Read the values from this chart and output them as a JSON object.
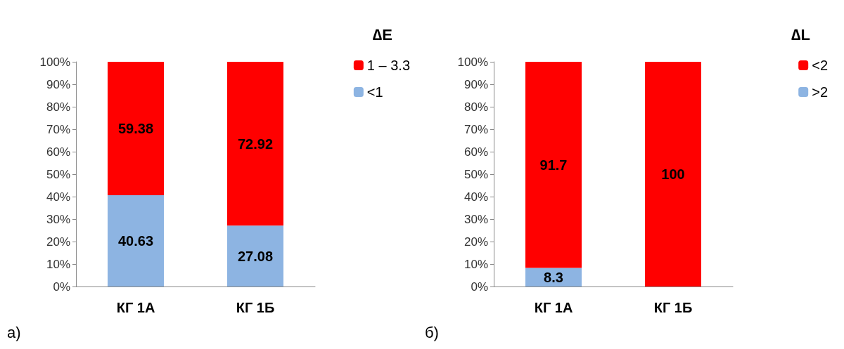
{
  "chart_data": [
    {
      "type": "bar",
      "stacked": true,
      "categories": [
        "КГ 1А",
        "КГ 1Б"
      ],
      "legend_title": "∆E",
      "legend": "top right",
      "ylim": [
        0,
        100
      ],
      "yticks": [
        {
          "value": 0,
          "label": "0%"
        },
        {
          "value": 10,
          "label": "10%"
        },
        {
          "value": 20,
          "label": "20%"
        },
        {
          "value": 30,
          "label": "30%"
        },
        {
          "value": 40,
          "label": "40%"
        },
        {
          "value": 50,
          "label": "50%"
        },
        {
          "value": 60,
          "label": "60%"
        },
        {
          "value": 70,
          "label": "70%"
        },
        {
          "value": 80,
          "label": "80%"
        },
        {
          "value": 90,
          "label": "90%"
        },
        {
          "value": 100,
          "label": "100%"
        }
      ],
      "data_labels": true,
      "annotations": [
        "а)"
      ],
      "series": [
        {
          "name": "<1",
          "color": "#8db4e2",
          "values": [
            40.63,
            27.08
          ]
        },
        {
          "name": "1 – 3.3",
          "color": "#ff0000",
          "values": [
            59.38,
            72.92
          ]
        }
      ]
    },
    {
      "type": "bar",
      "stacked": true,
      "categories": [
        "КГ 1А",
        "КГ 1Б"
      ],
      "legend_title": "∆L",
      "legend": "top right",
      "ylim": [
        0,
        100
      ],
      "yticks": [
        {
          "value": 0,
          "label": "0%"
        },
        {
          "value": 10,
          "label": "10%"
        },
        {
          "value": 20,
          "label": "20%"
        },
        {
          "value": 30,
          "label": "30%"
        },
        {
          "value": 40,
          "label": "40%"
        },
        {
          "value": 50,
          "label": "50%"
        },
        {
          "value": 60,
          "label": "60%"
        },
        {
          "value": 70,
          "label": "70%"
        },
        {
          "value": 80,
          "label": "80%"
        },
        {
          "value": 90,
          "label": "90%"
        },
        {
          "value": 100,
          "label": "100%"
        }
      ],
      "annotations": [
        "б)"
      ],
      "series": [
        {
          "name": ">2",
          "color": "#8db4e2",
          "values": [
            8.3,
            0
          ],
          "value_labels": [
            "8.3",
            null
          ]
        },
        {
          "name": "<2",
          "color": "#ff0000",
          "values": [
            91.7,
            100
          ],
          "value_labels": [
            "91.7",
            "100"
          ]
        }
      ]
    }
  ]
}
